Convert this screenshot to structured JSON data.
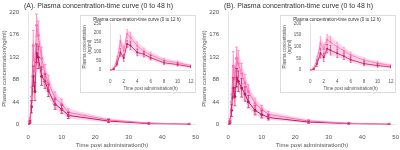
{
  "chart_data": [
    {
      "type": "line",
      "title": "(A). Plasma concentration-time curve (0 to 48 h)",
      "xlabel": "Time post administration(h)",
      "ylabel": "Plasma concentration(ng/ml)",
      "x": [
        0,
        0.5,
        1.0,
        1.5,
        2.0,
        2.5,
        3.0,
        4.0,
        5.0,
        6.0,
        8.0,
        10.0,
        12.0,
        24.0,
        36.0,
        48.0
      ],
      "series": [
        {
          "color": "#FF6EB4",
          "marker": "circle",
          "line_style": "solid",
          "values": [
            0,
            10,
            55,
            155,
            105,
            195,
            175,
            130,
            100,
            82,
            52,
            40,
            24,
            9,
            3,
            1
          ],
          "errors": [
            0,
            5,
            18,
            30,
            25,
            22,
            28,
            22,
            18,
            15,
            12,
            10,
            7,
            3,
            1,
            0.5
          ]
        },
        {
          "color": "#C2185B",
          "marker": "circle",
          "line_style": "solid",
          "values": [
            0,
            5,
            35,
            95,
            65,
            140,
            132,
            95,
            85,
            67,
            40,
            30,
            18,
            7,
            2,
            0.5
          ],
          "errors": [
            0,
            3,
            12,
            20,
            18,
            18,
            22,
            18,
            14,
            12,
            10,
            8,
            6,
            3,
            1,
            0.3
          ]
        }
      ],
      "band": {
        "color": "#FF6EB4",
        "lower": [
          0,
          2,
          23,
          75,
          47,
          122,
          110,
          77,
          71,
          55,
          30,
          22,
          12,
          4,
          1,
          0.2
        ],
        "upper": [
          0,
          15,
          73,
          185,
          130,
          217,
          203,
          152,
          118,
          97,
          64,
          50,
          31,
          12,
          4,
          1.5
        ]
      },
      "xlim": [
        0,
        50
      ],
      "xticks": [
        0,
        10,
        20,
        30,
        40,
        50
      ],
      "ylim": [
        0,
        220
      ],
      "yticks": [
        0,
        44,
        88,
        132,
        176,
        220
      ],
      "grid": false
    },
    {
      "type": "line",
      "title": "Plasma concentration-time curve (0 to 12 h)",
      "xlabel": "Time post administration(h)",
      "ylabel": "Plasma concentration\n(ng/ml)",
      "x": [
        0,
        0.5,
        1.0,
        1.5,
        2.0,
        2.5,
        3.0,
        4.0,
        5.0,
        6.0,
        8.0,
        10.0,
        12.0
      ],
      "series": [
        {
          "color": "#FF6EB4",
          "marker": "circle",
          "line_style": "solid",
          "values": [
            0,
            10,
            55,
            155,
            105,
            195,
            175,
            130,
            100,
            82,
            52,
            40,
            24
          ],
          "errors": [
            0,
            5,
            18,
            30,
            25,
            22,
            28,
            22,
            18,
            15,
            12,
            10,
            7
          ]
        },
        {
          "color": "#C2185B",
          "marker": "circle",
          "line_style": "solid",
          "values": [
            0,
            5,
            35,
            95,
            65,
            140,
            132,
            95,
            85,
            67,
            40,
            30,
            18
          ],
          "errors": [
            0,
            3,
            12,
            20,
            18,
            18,
            22,
            18,
            14,
            12,
            10,
            8,
            6
          ]
        }
      ],
      "band": {
        "color": "#FF6EB4",
        "lower": [
          0,
          2,
          23,
          75,
          47,
          122,
          110,
          77,
          71,
          55,
          30,
          22,
          12
        ],
        "upper": [
          0,
          15,
          73,
          185,
          130,
          217,
          203,
          152,
          118,
          97,
          64,
          50,
          31
        ]
      },
      "xlim": [
        0,
        12
      ],
      "xticks": [
        0,
        2,
        4,
        6,
        8,
        10,
        12
      ],
      "ylim": [
        0,
        250
      ],
      "yticks": [
        0,
        50,
        100,
        150,
        200,
        250
      ],
      "grid": false
    },
    {
      "type": "line",
      "title": "(B). Plasma concentration-time curve (0 to 48 h)",
      "xlabel": "Time post administration(h)",
      "ylabel": "Plasma concentration(ng/ml)",
      "x": [
        0,
        0.5,
        1.0,
        1.5,
        2.0,
        2.5,
        3.0,
        4.0,
        5.0,
        6.0,
        8.0,
        10.0,
        12.0,
        24.0,
        36.0,
        48.0
      ],
      "series": [
        {
          "color": "#FF6EB4",
          "marker": "circle",
          "line_style": "solid",
          "values": [
            0,
            8,
            45,
            115,
            90,
            130,
            120,
            100,
            82,
            65,
            42,
            30,
            20,
            7,
            2.5,
            1
          ],
          "errors": [
            0,
            4,
            15,
            28,
            22,
            22,
            25,
            20,
            16,
            13,
            10,
            8,
            6,
            3,
            1,
            0.4
          ]
        },
        {
          "color": "#C2185B",
          "marker": "circle",
          "line_style": "solid",
          "values": [
            0,
            4,
            28,
            72,
            55,
            92,
            85,
            72,
            60,
            45,
            28,
            20,
            14,
            5,
            2,
            0.5
          ],
          "errors": [
            0,
            3,
            12,
            20,
            18,
            18,
            20,
            18,
            14,
            12,
            9,
            7,
            5,
            2,
            1,
            0.3
          ]
        }
      ],
      "band": {
        "color": "#FF6EB4",
        "lower": [
          0,
          1,
          16,
          52,
          37,
          74,
          65,
          54,
          46,
          33,
          19,
          13,
          9,
          3,
          1,
          0.2
        ],
        "upper": [
          0,
          12,
          60,
          143,
          112,
          152,
          145,
          120,
          98,
          78,
          52,
          38,
          26,
          10,
          3.5,
          1.4
        ]
      },
      "xlim": [
        0,
        50
      ],
      "xticks": [
        0,
        10,
        20,
        30,
        40,
        50
      ],
      "ylim": [
        0,
        220
      ],
      "yticks": [
        0,
        44,
        88,
        132,
        176,
        220
      ],
      "grid": false
    },
    {
      "type": "line",
      "title": "Plasma concentration-time curve (0 to 12 h)",
      "xlabel": "Time post administration(h)",
      "ylabel": "Plasma concentration\n(ng/ml)",
      "x": [
        0,
        0.5,
        1.0,
        1.5,
        2.0,
        2.5,
        3.0,
        4.0,
        5.0,
        6.0,
        8.0,
        10.0,
        12.0
      ],
      "series": [
        {
          "color": "#FF6EB4",
          "marker": "circle",
          "line_style": "solid",
          "values": [
            0,
            8,
            45,
            115,
            90,
            130,
            120,
            100,
            82,
            65,
            42,
            30,
            20
          ],
          "errors": [
            0,
            4,
            15,
            28,
            22,
            22,
            25,
            20,
            16,
            13,
            10,
            8,
            6
          ]
        },
        {
          "color": "#C2185B",
          "marker": "circle",
          "line_style": "solid",
          "values": [
            0,
            4,
            28,
            72,
            55,
            92,
            85,
            72,
            60,
            45,
            28,
            20,
            14
          ],
          "errors": [
            0,
            3,
            12,
            20,
            18,
            18,
            20,
            18,
            14,
            12,
            9,
            7,
            5
          ]
        }
      ],
      "band": {
        "color": "#FF6EB4",
        "lower": [
          0,
          1,
          16,
          52,
          37,
          74,
          65,
          54,
          46,
          33,
          19,
          13,
          9
        ],
        "upper": [
          0,
          12,
          60,
          143,
          112,
          152,
          145,
          120,
          98,
          78,
          52,
          38,
          26
        ]
      },
      "xlim": [
        0,
        12
      ],
      "xticks": [
        0,
        2,
        4,
        6,
        8,
        10,
        12
      ],
      "ylim": [
        0,
        200
      ],
      "yticks": [
        0,
        50,
        100,
        150,
        200
      ],
      "grid": false
    }
  ]
}
